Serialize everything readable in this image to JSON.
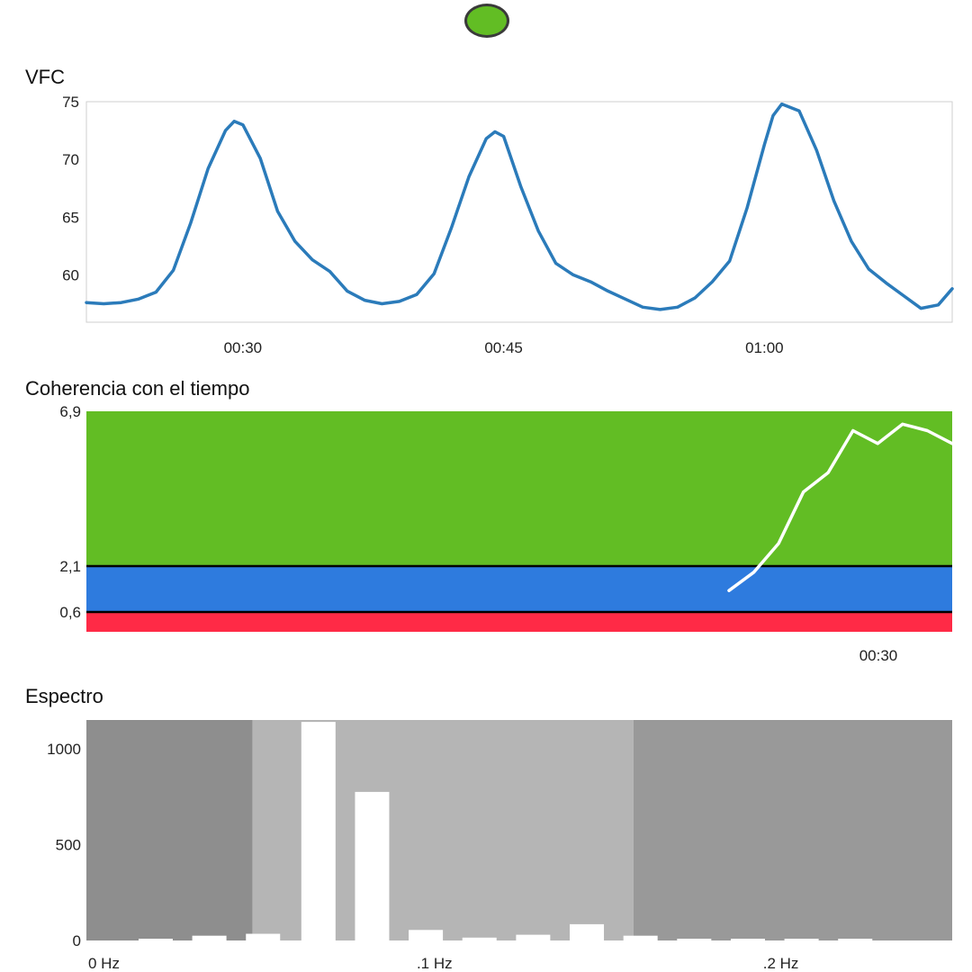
{
  "status": {
    "indicator_color": "#62bd24"
  },
  "chart_data": [
    {
      "type": "line",
      "title": "VFC",
      "xlabel": "",
      "ylabel": "",
      "ylim": [
        55.9,
        75
      ],
      "xlim": [
        21.0,
        70.8
      ],
      "x_tick_values": [
        30,
        45,
        60
      ],
      "x_tick_labels": [
        "00:30",
        "00:45",
        "01:00"
      ],
      "y_ticks": [
        75,
        70,
        65,
        60
      ],
      "color": "#2b7bba",
      "x": [
        21.0,
        22.0,
        23.0,
        24.0,
        25.0,
        26.0,
        27.0,
        28.0,
        29.0,
        29.5,
        30.0,
        31.0,
        32.0,
        33.0,
        34.0,
        35.0,
        36.0,
        37.0,
        38.0,
        39.0,
        40.0,
        41.0,
        42.0,
        43.0,
        44.0,
        44.5,
        45.0,
        46.0,
        47.0,
        48.0,
        49.0,
        50.0,
        51.0,
        52.0,
        53.0,
        54.0,
        55.0,
        56.0,
        57.0,
        58.0,
        59.0,
        60.0,
        60.5,
        61.0,
        62.0,
        63.0,
        64.0,
        65.0,
        66.0,
        67.0,
        68.0,
        69.0,
        70.0,
        70.8
      ],
      "values": [
        57.6,
        57.5,
        57.6,
        57.9,
        58.5,
        60.4,
        64.5,
        69.2,
        72.5,
        73.3,
        73.0,
        70.1,
        65.5,
        62.9,
        61.3,
        60.3,
        58.6,
        57.8,
        57.5,
        57.7,
        58.3,
        60.1,
        64.1,
        68.5,
        71.8,
        72.4,
        72.0,
        67.6,
        63.8,
        61.0,
        60.0,
        59.4,
        58.6,
        57.9,
        57.2,
        57.0,
        57.2,
        58.0,
        59.4,
        61.2,
        65.8,
        71.3,
        73.8,
        74.8,
        74.2,
        70.8,
        66.4,
        62.9,
        60.5,
        59.3,
        58.2,
        57.1,
        57.4,
        58.8
      ]
    },
    {
      "type": "line",
      "title": "Coherencia con el tiempo",
      "xlabel": "",
      "ylabel": "",
      "ylim": [
        0,
        6.9
      ],
      "x_tick_values": [
        30
      ],
      "x_tick_labels": [
        "00:30"
      ],
      "y_ticks": [
        {
          "label": "6,9",
          "value": 6.9
        },
        {
          "label": "2,1",
          "value": 2.1
        },
        {
          "label": "0,6",
          "value": 0.6
        }
      ],
      "bands": [
        {
          "from": 2.1,
          "to": 6.9,
          "color": "#62bd24"
        },
        {
          "from": 0.6,
          "to": 2.1,
          "color": "#2e7bde"
        },
        {
          "from": 0.0,
          "to": 0.6,
          "color": "#ff2a46"
        }
      ],
      "line_color": "#ffffff",
      "x": [
        6,
        9,
        12,
        15,
        18,
        21,
        24,
        27,
        30,
        33
      ],
      "values": [
        1.3,
        1.9,
        2.8,
        4.4,
        5.0,
        6.3,
        5.9,
        6.5,
        6.3,
        5.9
      ]
    },
    {
      "type": "bar",
      "title": "Espectro",
      "xlabel": "",
      "ylabel": "",
      "ylim": [
        0,
        1150
      ],
      "xlim": [
        0,
        0.25
      ],
      "x_tick_values": [
        0,
        0.1,
        0.2
      ],
      "x_tick_labels": [
        "0 Hz",
        ".1 Hz",
        ".2 Hz"
      ],
      "y_ticks": [
        1000,
        500,
        0
      ],
      "background_bands": [
        {
          "from": 0.0,
          "to": 0.048,
          "color": "#8e8e8e"
        },
        {
          "from": 0.048,
          "to": 0.158,
          "color": "#b5b5b5"
        },
        {
          "from": 0.158,
          "to": 0.25,
          "color": "#999999"
        }
      ],
      "bar_color": "#ffffff",
      "x": [
        0.02,
        0.0355,
        0.051,
        0.067,
        0.0825,
        0.098,
        0.1135,
        0.129,
        0.1445,
        0.16,
        0.1755,
        0.191,
        0.2065,
        0.222
      ],
      "values": [
        3,
        25,
        35,
        1140,
        775,
        55,
        15,
        30,
        85,
        25,
        2,
        2,
        2,
        2
      ]
    }
  ]
}
